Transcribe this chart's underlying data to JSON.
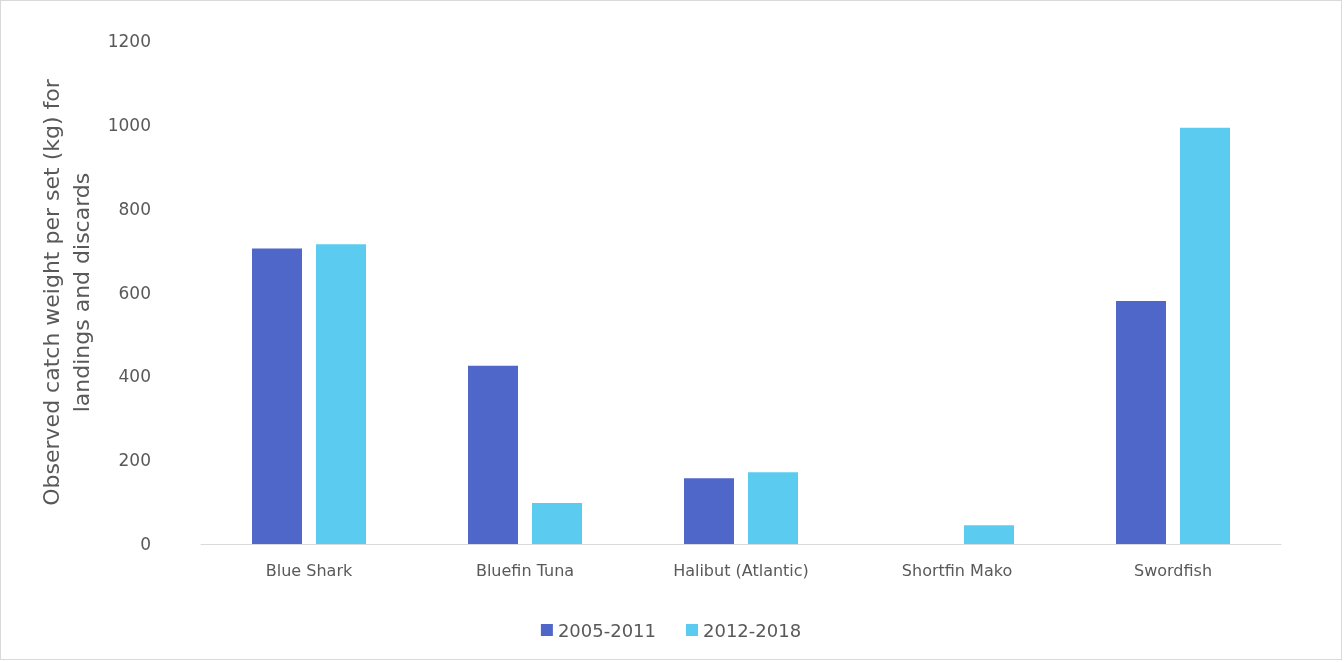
{
  "chart_data": {
    "type": "bar",
    "ylabel": "Observed catch weight per set (kg) for\nlandings and discards",
    "categories": [
      "Blue Shark",
      "Bluefin Tuna",
      "Halibut (Atlantic)",
      "Shortfin Mako",
      "Swordfish"
    ],
    "series": [
      {
        "name": "2005-2011",
        "color": "#4f67c9",
        "values": [
          705,
          425,
          157,
          0,
          580
        ]
      },
      {
        "name": "2012-2018",
        "color": "#5bcbf0",
        "values": [
          715,
          98,
          171,
          45,
          993
        ]
      }
    ],
    "ylim": [
      0,
      1200
    ],
    "yticks": [
      0,
      200,
      400,
      600,
      800,
      1000,
      1200
    ],
    "grid": false,
    "legend": "bottom"
  }
}
